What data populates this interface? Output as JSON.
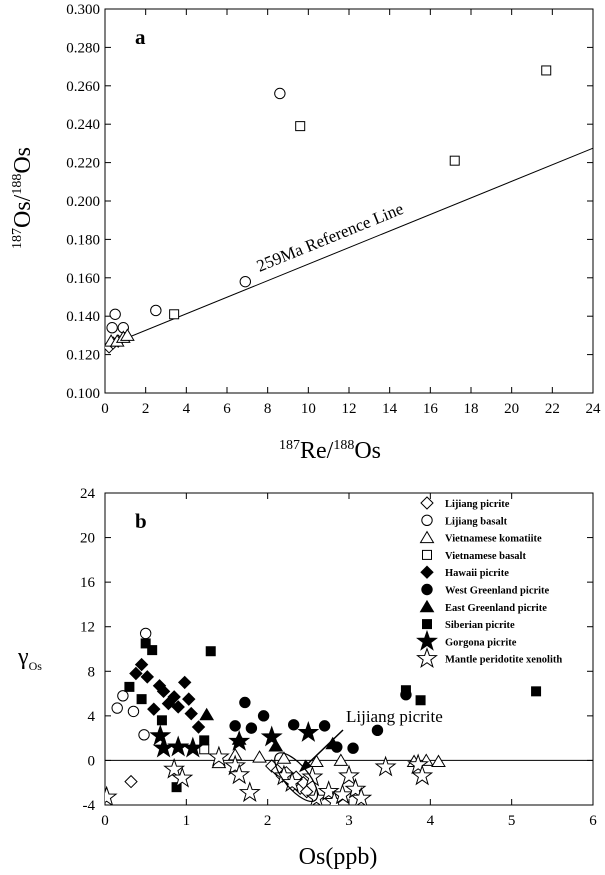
{
  "chart_data": [
    {
      "type": "scatter",
      "panel_label": "a",
      "xlabel": "187Re/188Os",
      "ylabel": "187Os/188Os",
      "xlim": [
        0,
        24
      ],
      "ylim": [
        0.1,
        0.3
      ],
      "xticks": [
        "0",
        "2",
        "4",
        "6",
        "8",
        "10",
        "12",
        "14",
        "16",
        "18",
        "20",
        "22",
        "24"
      ],
      "yticks": [
        "0.100",
        "0.120",
        "0.140",
        "0.160",
        "0.180",
        "0.200",
        "0.220",
        "0.240",
        "0.260",
        "0.280",
        "0.300"
      ],
      "reference_line": {
        "label": "259Ma Reference Line",
        "from": [
          0.3,
          0.1253
        ],
        "to": [
          24,
          0.2275
        ]
      },
      "series": [
        {
          "name": "Lijiang picrite",
          "marker": "diamond-open",
          "points": [
            [
              0.2,
              0.124
            ],
            [
              0.4,
              0.126
            ],
            [
              0.65,
              0.127
            ]
          ]
        },
        {
          "name": "Lijiang basalt",
          "marker": "circle-open",
          "points": [
            [
              0.35,
              0.134
            ],
            [
              0.5,
              0.141
            ],
            [
              0.9,
              0.134
            ],
            [
              2.5,
              0.143
            ],
            [
              6.9,
              0.158
            ],
            [
              8.6,
              0.256
            ]
          ]
        },
        {
          "name": "Vietnamese komatiite",
          "marker": "triangle-open",
          "points": [
            [
              0.3,
              0.127
            ],
            [
              0.6,
              0.127
            ],
            [
              0.9,
              0.129
            ],
            [
              1.1,
              0.13
            ]
          ]
        },
        {
          "name": "Vietnamese basalt",
          "marker": "square-open",
          "points": [
            [
              3.4,
              0.141
            ],
            [
              9.6,
              0.239
            ],
            [
              17.2,
              0.221
            ],
            [
              21.7,
              0.268
            ]
          ]
        }
      ]
    },
    {
      "type": "scatter",
      "panel_label": "b",
      "xlabel": "Os(ppb)",
      "ylabel": "γOs",
      "xlim": [
        0,
        6
      ],
      "ylim": [
        -4,
        24
      ],
      "xticks": [
        "0",
        "1",
        "2",
        "3",
        "4",
        "5",
        "6"
      ],
      "yticks": [
        "-4",
        "0",
        "4",
        "8",
        "12",
        "16",
        "20",
        "24"
      ],
      "zero_line": 0,
      "annotation": {
        "text": "Lijiang picrite",
        "points_to": [
          2.35,
          -1.5
        ]
      },
      "series": [
        {
          "name": "Lijiang picrite",
          "marker": "diamond-open",
          "points": [
            [
              0.32,
              -1.9
            ],
            [
              2.05,
              -0.5
            ],
            [
              2.12,
              -0.9
            ],
            [
              2.18,
              -1.4
            ],
            [
              2.23,
              -1.1
            ],
            [
              2.27,
              -1.8
            ],
            [
              2.31,
              -2.2
            ],
            [
              2.35,
              -1.5
            ],
            [
              2.4,
              -2.5
            ],
            [
              2.44,
              -2.0
            ],
            [
              2.48,
              -2.8
            ]
          ]
        },
        {
          "name": "Lijiang basalt",
          "marker": "circle-open",
          "points": [
            [
              0.15,
              4.7
            ],
            [
              0.22,
              5.8
            ],
            [
              0.35,
              4.4
            ],
            [
              0.48,
              2.3
            ],
            [
              0.5,
              11.4
            ]
          ]
        },
        {
          "name": "Vietnamese komatiite",
          "marker": "triangle-open",
          "points": [
            [
              1.4,
              -0.2
            ],
            [
              1.6,
              0.5
            ],
            [
              1.9,
              0.3
            ],
            [
              2.2,
              0.2
            ],
            [
              2.6,
              -0.1
            ],
            [
              2.9,
              0.0
            ],
            [
              3.8,
              -0.1
            ],
            [
              3.95,
              0.0
            ],
            [
              4.1,
              -0.1
            ]
          ]
        },
        {
          "name": "Vietnamese basalt",
          "marker": "square-open",
          "points": [
            [
              1.22,
              1.0
            ]
          ]
        },
        {
          "name": "Hawaii picrite",
          "marker": "diamond-filled",
          "points": [
            [
              0.38,
              7.8
            ],
            [
              0.45,
              8.6
            ],
            [
              0.52,
              7.5
            ],
            [
              0.6,
              4.6
            ],
            [
              0.67,
              6.7
            ],
            [
              0.72,
              6.2
            ],
            [
              0.78,
              5.1
            ],
            [
              0.85,
              5.7
            ],
            [
              0.9,
              4.8
            ],
            [
              0.98,
              7.0
            ],
            [
              1.03,
              5.5
            ],
            [
              1.06,
              4.2
            ],
            [
              1.15,
              3.0
            ]
          ]
        },
        {
          "name": "West Greenland picrite",
          "marker": "circle-filled",
          "points": [
            [
              1.6,
              3.1
            ],
            [
              1.72,
              5.2
            ],
            [
              1.8,
              2.9
            ],
            [
              1.95,
              4.0
            ],
            [
              2.32,
              3.2
            ],
            [
              2.7,
              3.1
            ],
            [
              2.85,
              1.2
            ],
            [
              3.05,
              1.1
            ],
            [
              3.35,
              2.7
            ],
            [
              3.7,
              5.9
            ]
          ]
        },
        {
          "name": "East Greenland picrite",
          "marker": "triangle-filled",
          "points": [
            [
              1.25,
              4.1
            ],
            [
              1.65,
              1.9
            ],
            [
              2.1,
              1.3
            ],
            [
              2.8,
              1.5
            ]
          ]
        },
        {
          "name": "Siberian picrite",
          "marker": "square-filled",
          "points": [
            [
              0.3,
              6.6
            ],
            [
              0.45,
              5.5
            ],
            [
              0.5,
              10.5
            ],
            [
              0.58,
              9.9
            ],
            [
              0.7,
              3.6
            ],
            [
              0.88,
              -2.4
            ],
            [
              1.22,
              1.8
            ],
            [
              1.3,
              9.8
            ],
            [
              3.7,
              6.3
            ],
            [
              3.88,
              5.4
            ],
            [
              5.3,
              6.2
            ]
          ]
        },
        {
          "name": "Gorgona picrite",
          "marker": "star-filled",
          "points": [
            [
              0.68,
              2.2
            ],
            [
              0.72,
              1.1
            ],
            [
              0.9,
              1.2
            ],
            [
              1.08,
              1.1
            ],
            [
              1.65,
              1.7
            ],
            [
              2.05,
              2.1
            ],
            [
              2.5,
              2.5
            ]
          ]
        },
        {
          "name": "Mantle peridotite xenolith",
          "marker": "star-open",
          "points": [
            [
              0.02,
              -3.3
            ],
            [
              0.85,
              -0.8
            ],
            [
              0.95,
              -1.6
            ],
            [
              1.4,
              0.3
            ],
            [
              1.6,
              -0.5
            ],
            [
              1.65,
              -1.3
            ],
            [
              1.78,
              -2.9
            ],
            [
              2.2,
              -1.4
            ],
            [
              2.3,
              -2.0
            ],
            [
              2.55,
              -1.5
            ],
            [
              2.6,
              -3.4
            ],
            [
              2.75,
              -2.8
            ],
            [
              2.82,
              -3.7
            ],
            [
              2.92,
              -3.1
            ],
            [
              3.0,
              -1.4
            ],
            [
              3.08,
              -2.6
            ],
            [
              3.15,
              -3.4
            ],
            [
              3.45,
              -0.6
            ],
            [
              3.85,
              -0.4
            ],
            [
              3.9,
              -1.4
            ]
          ]
        }
      ]
    }
  ]
}
